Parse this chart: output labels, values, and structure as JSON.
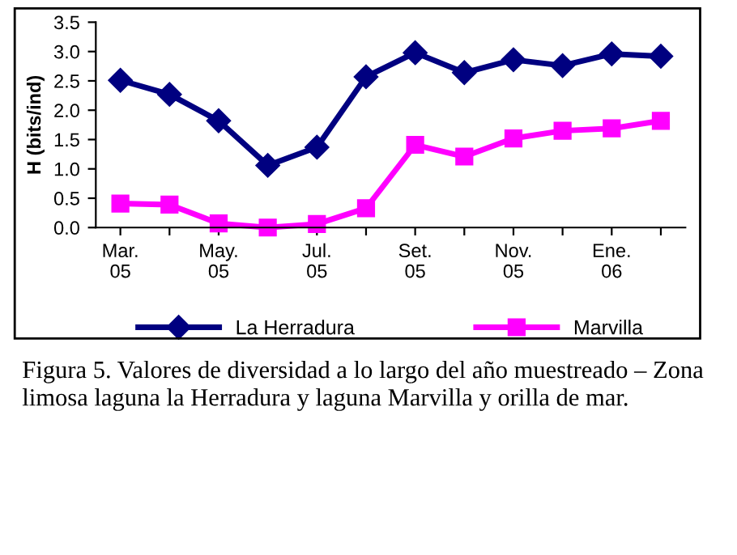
{
  "chart_data": {
    "type": "line",
    "ylabel": "H (bits/ind)",
    "categories": [
      "Mar.\n05",
      null,
      "May.\n05",
      null,
      "Jul.\n05",
      null,
      "Set.\n05",
      null,
      "Nov.\n05",
      null,
      "Ene.\n06",
      null
    ],
    "series": [
      {
        "name": "La Herradura",
        "color": "#000080",
        "marker": "diamond",
        "values": [
          2.51,
          2.27,
          1.82,
          1.06,
          1.37,
          2.57,
          2.98,
          2.64,
          2.86,
          2.76,
          2.96,
          2.92
        ]
      },
      {
        "name": "Marvilla",
        "color": "#ff00ff",
        "marker": "square",
        "values": [
          0.41,
          0.39,
          0.07,
          0.0,
          0.06,
          0.33,
          1.41,
          1.21,
          1.52,
          1.65,
          1.69,
          1.82
        ]
      }
    ],
    "ylim": [
      0,
      3.5
    ],
    "yticks": [
      {
        "value": 0,
        "label": "0.0"
      },
      0.5,
      {
        "value": 1,
        "label": "1.0"
      },
      1.5,
      {
        "value": 2,
        "label": "2.0"
      },
      2.5,
      {
        "value": 3,
        "label": "3.0"
      },
      3.5
    ],
    "grid": false,
    "legend": "bottom",
    "line_style": "solid",
    "annotations": [
      "Figura 5. Valores de diversidad a lo largo del año muestreado – Zona limosa laguna la Herradura y laguna Marvilla y orilla de mar."
    ]
  }
}
